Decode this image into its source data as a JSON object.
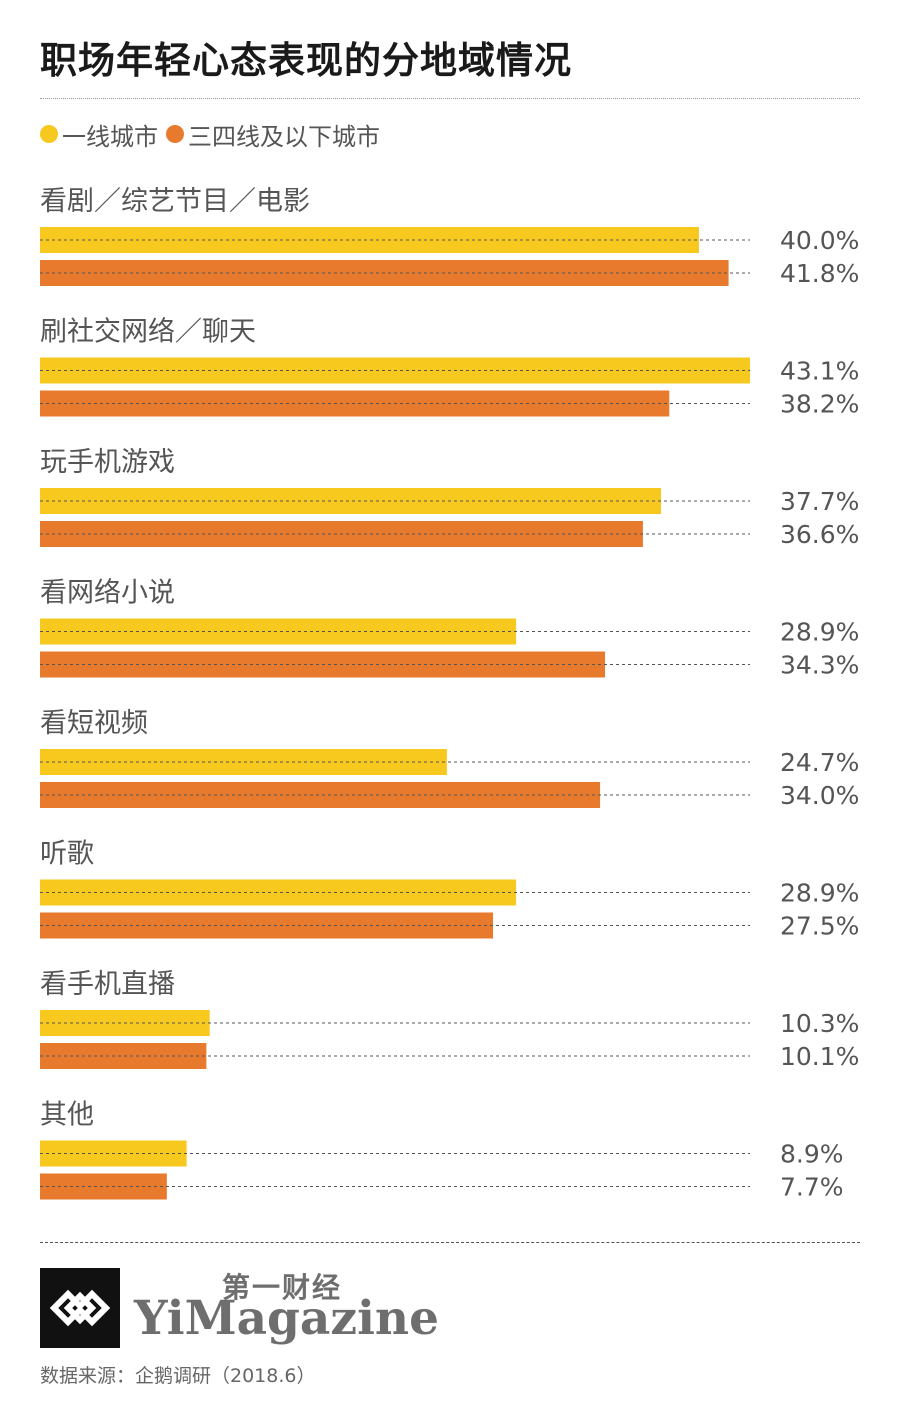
{
  "title": "职场年轻心态表现的分地域情况",
  "legend": [
    {
      "label": "一线城市",
      "color": "#F7C81E"
    },
    {
      "label": "三四线及以下城市",
      "color": "#E87A2E"
    }
  ],
  "chart_data": {
    "type": "bar",
    "orientation": "horizontal",
    "categories": [
      "看剧／综艺节目／电影",
      "刷社交网络／聊天",
      "玩手机游戏",
      "看网络小说",
      "看短视频",
      "听歌",
      "看手机直播",
      "其他"
    ],
    "series": [
      {
        "name": "一线城市",
        "color": "#F7C81E",
        "values": [
          40.0,
          43.1,
          37.7,
          28.9,
          24.7,
          28.9,
          10.3,
          8.9
        ]
      },
      {
        "name": "三四线及以下城市",
        "color": "#E87A2E",
        "values": [
          41.8,
          38.2,
          36.6,
          34.3,
          34.0,
          27.5,
          10.1,
          7.7
        ]
      }
    ],
    "value_labels": [
      [
        "40.0%",
        "41.8%"
      ],
      [
        "43.1%",
        "38.2%"
      ],
      [
        "37.7%",
        "36.6%"
      ],
      [
        "28.9%",
        "34.3%"
      ],
      [
        "24.7%",
        "34.0%"
      ],
      [
        "28.9%",
        "27.5%"
      ],
      [
        "10.3%",
        "10.1%"
      ],
      [
        "8.9%",
        "7.7%"
      ]
    ],
    "xlim": [
      0,
      43.1
    ],
    "unit": "%",
    "legend_position": "top-left"
  },
  "footer": {
    "brand_cn": "第一财经",
    "brand_en": "YiMagazine",
    "source": "数据来源：企鹅调研（2018.6）"
  }
}
